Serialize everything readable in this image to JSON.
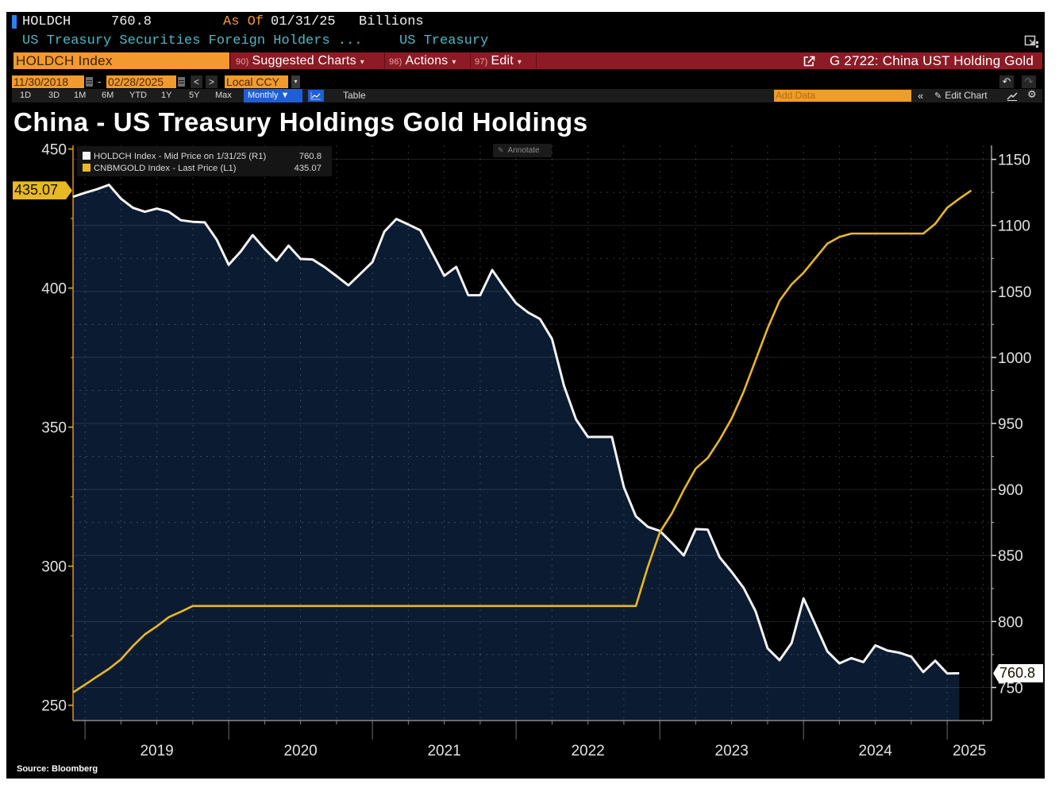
{
  "header": {
    "ticker": "HOLDCH",
    "last_value": "760.8",
    "as_of_label": "As Of",
    "as_of_date": "01/31/25",
    "units": "Billions",
    "description": "US Treasury Securities Foreign Holders ...",
    "category": "US Treasury"
  },
  "command_bar": {
    "security": "HOLDCH Index",
    "menus": [
      {
        "number": "90)",
        "label": "Suggested Charts",
        "caret": "▾"
      },
      {
        "number": "96)",
        "label": "Actions",
        "caret": "▾"
      },
      {
        "number": "97)",
        "label": "Edit",
        "caret": "▾"
      }
    ],
    "chart_link": "G 2722: China UST Holding Gold"
  },
  "date_bar": {
    "start_date": "11/30/2018",
    "separator": "-",
    "end_date": "02/28/2025",
    "prev": "<",
    "next": ">",
    "currency": "Local CCY",
    "currency_caret": "▾",
    "undo": "↶",
    "redo": "↷"
  },
  "toolbar": {
    "ranges": [
      "1D",
      "3D",
      "1M",
      "6M",
      "YTD",
      "1Y",
      "5Y",
      "Max"
    ],
    "frequency": "Monthly ▼",
    "table_label": "Table",
    "add_data_placeholder": "Add Data",
    "collapse": "«",
    "edit_chart_icon": "✎",
    "edit_chart_label": "Edit Chart",
    "settings_icon": "⚙"
  },
  "annotate": {
    "icon": "✎",
    "label": "Annotate"
  },
  "colors": {
    "ticker_marker": "#2f7ff0",
    "orange": "#f29a2e",
    "red_bar": "#8c1b26",
    "blue": "#1f5fd6",
    "teal": "#4fb8c6",
    "gold": "#e8b923",
    "white_line": "#f4f4f4",
    "area_fill": "#0b1b31"
  },
  "chart_data": {
    "type": "line",
    "title": "China - US Treasury Holdings Gold Holdings",
    "source": "Source: Bloomberg",
    "legend": "top-left",
    "grid": true,
    "xlim": [
      "2018-11",
      "2025-03"
    ],
    "x_tick_labels": [
      "2019",
      "2020",
      "2021",
      "2022",
      "2023",
      "2024",
      "2025"
    ],
    "x": [
      "2018-11",
      "2018-12",
      "2019-01",
      "2019-02",
      "2019-03",
      "2019-04",
      "2019-05",
      "2019-06",
      "2019-07",
      "2019-08",
      "2019-09",
      "2019-10",
      "2019-11",
      "2019-12",
      "2020-01",
      "2020-02",
      "2020-03",
      "2020-04",
      "2020-05",
      "2020-06",
      "2020-07",
      "2020-08",
      "2020-09",
      "2020-10",
      "2020-11",
      "2020-12",
      "2021-01",
      "2021-02",
      "2021-03",
      "2021-04",
      "2021-05",
      "2021-06",
      "2021-07",
      "2021-08",
      "2021-09",
      "2021-10",
      "2021-11",
      "2021-12",
      "2022-01",
      "2022-02",
      "2022-03",
      "2022-04",
      "2022-05",
      "2022-06",
      "2022-07",
      "2022-08",
      "2022-09",
      "2022-10",
      "2022-11",
      "2022-12",
      "2023-01",
      "2023-02",
      "2023-03",
      "2023-04",
      "2023-05",
      "2023-06",
      "2023-07",
      "2023-08",
      "2023-09",
      "2023-10",
      "2023-11",
      "2023-12",
      "2024-01",
      "2024-02",
      "2024-03",
      "2024-04",
      "2024-05",
      "2024-06",
      "2024-07",
      "2024-08",
      "2024-09",
      "2024-10",
      "2024-11",
      "2024-12",
      "2025-01",
      "2025-02"
    ],
    "y_left": {
      "label": "L1",
      "ticks": [
        250,
        300,
        350,
        400,
        450
      ],
      "minor_step": 25,
      "range": [
        244.5,
        451.3
      ]
    },
    "y_right": {
      "label": "R1",
      "ticks": [
        750,
        800,
        850,
        900,
        950,
        1000,
        1050,
        1100,
        1150
      ],
      "minor_step": 25,
      "range": [
        725,
        1160.6
      ]
    },
    "series": [
      {
        "name": "HOLDCH Index - Mid Price on 1/31/25 (R1)",
        "axis": "right",
        "last": "760.8",
        "values": [
          1121.7,
          1124.7,
          1127.4,
          1130.7,
          1120.3,
          1113.3,
          1110.3,
          1112.7,
          1110.3,
          1103.9,
          1102.7,
          1102.3,
          1089.2,
          1070.2,
          1080.2,
          1092.7,
          1082.2,
          1073.2,
          1084.7,
          1074.6,
          1074.2,
          1068.4,
          1061.6,
          1054.6,
          1063.4,
          1072.2,
          1095.3,
          1104.9,
          1100.7,
          1096.3,
          1079.2,
          1061.8,
          1068.6,
          1047.1,
          1047.1,
          1066.2,
          1053.1,
          1041.1,
          1034.1,
          1029.1,
          1014.0,
          978.5,
          953.0,
          939.8,
          939.8,
          939.8,
          901.7,
          879.7,
          871.7,
          868.6,
          859.6,
          850.0,
          870.0,
          869.6,
          848.6,
          837.5,
          825.5,
          807.8,
          779.7,
          770.7,
          783.6,
          817.5,
          797.4,
          777.3,
          768.3,
          772.3,
          769.3,
          781.9,
          778.0,
          776.4,
          773.4,
          761.7,
          770.3,
          760.7,
          760.8,
          null
        ]
      },
      {
        "name": "CNBMGOLD Index - Last Price (L1)",
        "axis": "left",
        "last": "435.07",
        "values": [
          254.6,
          257.4,
          260.3,
          263.1,
          266.5,
          271.3,
          275.5,
          278.4,
          281.7,
          283.6,
          285.7,
          285.7,
          285.7,
          285.7,
          285.7,
          285.7,
          285.7,
          285.7,
          285.7,
          285.7,
          285.7,
          285.7,
          285.7,
          285.7,
          285.7,
          285.7,
          285.7,
          285.7,
          285.7,
          285.7,
          285.7,
          285.7,
          285.7,
          285.7,
          285.7,
          285.7,
          285.7,
          285.7,
          285.7,
          285.7,
          285.7,
          285.7,
          285.7,
          285.7,
          285.7,
          285.7,
          285.7,
          285.7,
          299.8,
          312.2,
          318.9,
          327.4,
          335.1,
          338.9,
          345.5,
          353.1,
          362.7,
          374.1,
          385.5,
          395.5,
          401.3,
          405.5,
          410.8,
          416.0,
          418.4,
          419.6,
          419.6,
          419.6,
          419.6,
          419.6,
          419.6,
          419.6,
          423.1,
          428.9,
          432.1,
          435.07
        ]
      }
    ]
  }
}
